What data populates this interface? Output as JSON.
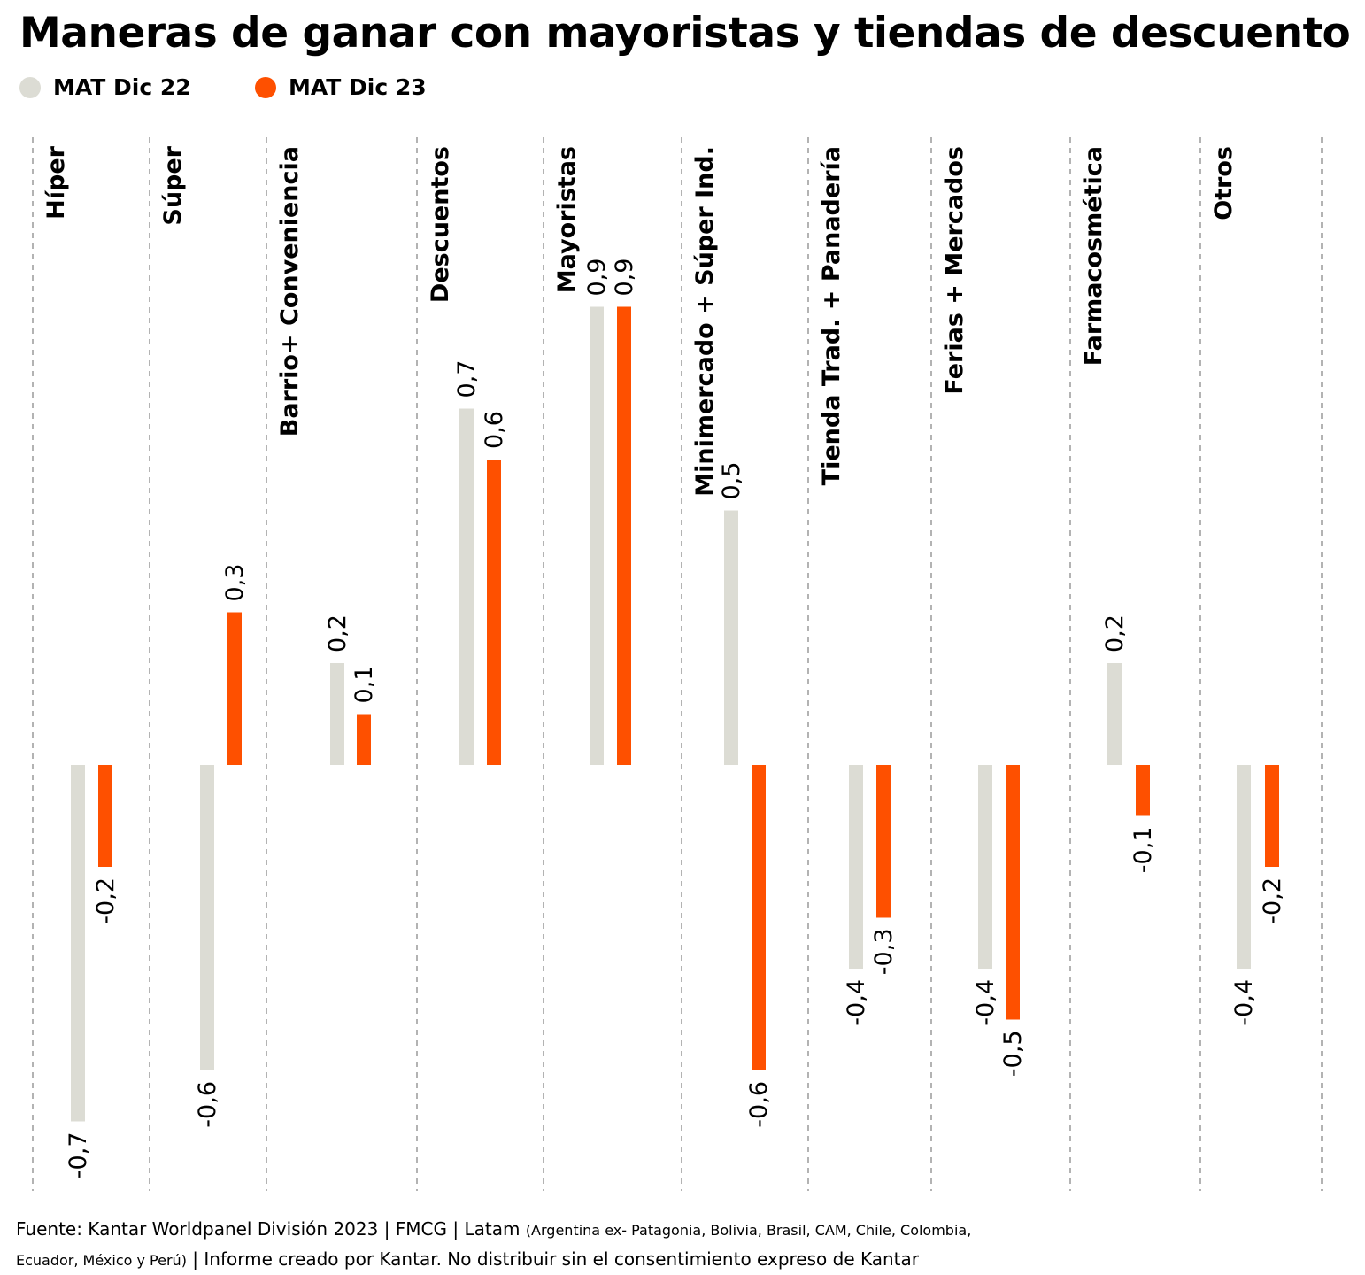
{
  "title": "Maneras de ganar con mayoristas y tiendas de descuento",
  "legend": [
    {
      "label": "MAT Dic 22",
      "color": "#dcdcd4"
    },
    {
      "label": "MAT Dic 23",
      "color": "#fe5000"
    }
  ],
  "footer": {
    "main": "Fuente: Kantar Worldpanel División 2023 | FMCG | Latam",
    "countries_a": "(Argentina ex- Patagonia, Bolivia, Brasil, CAM, Chile, Colombia,",
    "countries_b": "Ecuador, México y Perú)",
    "rest": "| Informe creado por Kantar. No distribuir sin el consentimiento expreso de Kantar"
  },
  "chart_data": {
    "type": "bar",
    "categories": [
      "Híper",
      "Súper",
      "Barrio+ Conveniencia",
      "Descuentos",
      "Mayoristas",
      "Minimercado + Súper Ind.",
      "Tienda Trad. + Panadería",
      "Ferias + Mercados",
      "Farmacosmética",
      "Otros"
    ],
    "series": [
      {
        "name": "MAT Dic 22",
        "color": "#dcdcd4",
        "values": [
          -0.7,
          -0.6,
          0.2,
          0.7,
          0.9,
          0.5,
          -0.4,
          -0.4,
          0.2,
          -0.4
        ],
        "labels": [
          "-0,7",
          "-0,6",
          "0,2",
          "0,7",
          "0,9",
          "0,5",
          "-0,4",
          "-0,4",
          "0,2",
          "-0,4"
        ]
      },
      {
        "name": "MAT Dic 23",
        "color": "#fe5000",
        "values": [
          -0.2,
          0.3,
          0.1,
          0.6,
          0.9,
          -0.6,
          -0.3,
          -0.5,
          -0.1,
          -0.2
        ],
        "labels": [
          "-0,2",
          "0,3",
          "0,1",
          "0,6",
          "0,9",
          "-0,6",
          "-0,3",
          "-0,5",
          "-0,1",
          "-0,2"
        ]
      }
    ],
    "ylim": [
      -0.8,
      1.0
    ],
    "grid": false,
    "legend_position": "top-left"
  }
}
